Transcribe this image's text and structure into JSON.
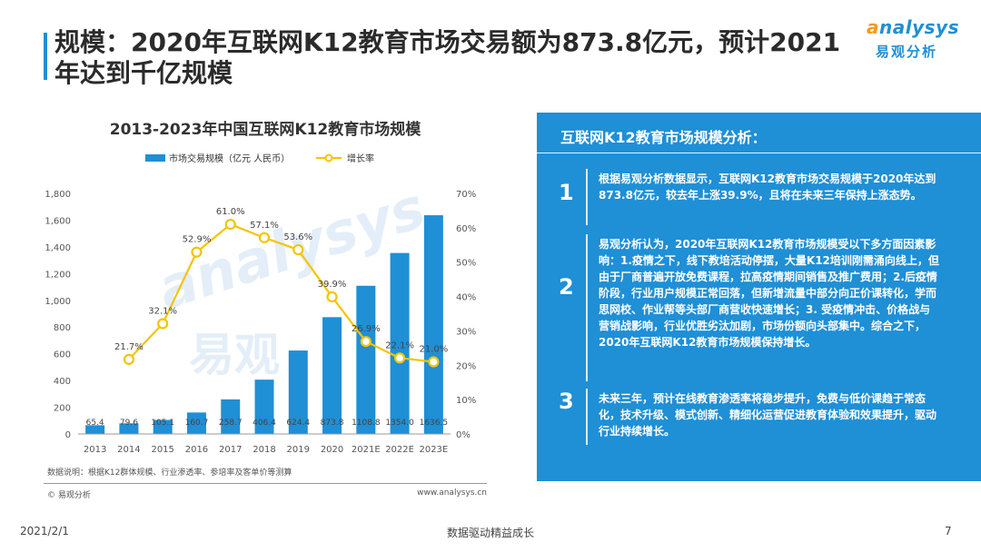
{
  "header": {
    "title": "规模：2020年互联网K12教育市场交易额为873.8亿元，预计2021年达到千亿规模"
  },
  "logo": {
    "word_lead": "a",
    "word_rest": "nalysys",
    "cn": "易观分析",
    "watermark_word": "analysys",
    "watermark_cn": "易观"
  },
  "chart_data": {
    "type": "bar",
    "title": "2013-2023年中国互联网K12教育市场规模",
    "categories": [
      "2013",
      "2014",
      "2015",
      "2016",
      "2017",
      "2018",
      "2019",
      "2020",
      "2021E",
      "2022E",
      "2023E"
    ],
    "series": [
      {
        "name": "市场交易规模（亿元 人民币）",
        "type": "bar",
        "color": "#1f8fd6",
        "axis": "left",
        "values": [
          65.4,
          79.6,
          105.1,
          160.7,
          258.7,
          406.4,
          624.4,
          873.8,
          1108.8,
          1354.0,
          1636.5
        ],
        "labels": [
          "65.4",
          "79.6",
          "105.1",
          "160.7",
          "258.7",
          "406.4",
          "624.4",
          "873.8",
          "1108.8",
          "1354.0",
          "1636.5"
        ]
      },
      {
        "name": "增长率",
        "type": "line",
        "color": "#f5c400",
        "axis": "right",
        "values": [
          null,
          21.7,
          32.1,
          52.9,
          61.0,
          57.1,
          53.6,
          39.9,
          26.9,
          22.1,
          21.0
        ],
        "labels": [
          null,
          "21.7%",
          "32.1%",
          "52.9%",
          "61.0%",
          "57.1%",
          "53.6%",
          "39.9%",
          "26.9%",
          "22.1%",
          "21.0%"
        ]
      }
    ],
    "ylim": [
      0,
      1800
    ],
    "yticks": [
      "0",
      "200",
      "400",
      "600",
      "800",
      "1,000",
      "1,200",
      "1,400",
      "1,600",
      "1,800"
    ],
    "y2lim": [
      0,
      70
    ],
    "y2ticks": [
      "0%",
      "10%",
      "20%",
      "30%",
      "40%",
      "50%",
      "60%",
      "70%"
    ],
    "grid": false,
    "legend_position": "top-left"
  },
  "chart_footer": {
    "note": "数据说明：根据K12群体规模、行业渗透率、参培率及客单价等测算",
    "source": "© 易观分析",
    "website": "www.analysys.cn"
  },
  "panel": {
    "title": "互联网K12教育市场规模分析：",
    "points": [
      {
        "num": "1",
        "text": "根据易观分析数据显示，互联网K12教育市场交易规模于2020年达到873.8亿元，较去年上涨39.9%，且将在未来三年保持上涨态势。"
      },
      {
        "num": "2",
        "text": "易观分析认为，2020年互联网K12教育市场规模受以下多方面因素影响：1.疫情之下，线下教培活动停摆，大量K12培训刚需涌向线上，但由于厂商普遍开放免费课程，拉高疫情期间销售及推广费用；2.后疫情阶段，行业用户规模正常回落，但新增流量中部分向正价课转化，学而思网校、作业帮等头部厂商营收快速增长；3. 受疫情冲击、价格战与营销战影响，行业优胜劣汰加剧，市场份额向头部集中。综合之下，2020年互联网K12教育市场规模保持增长。"
      },
      {
        "num": "3",
        "text": "未来三年，预计在线教育渗透率将稳步提升，免费与低价课趋于常态化，技术升级、模式创新、精细化运营促进教育体验和效果提升，驱动行业持续增长。"
      }
    ]
  },
  "footer": {
    "date": "2021/2/1",
    "slogan": "数据驱动精益成长",
    "page": "7"
  }
}
